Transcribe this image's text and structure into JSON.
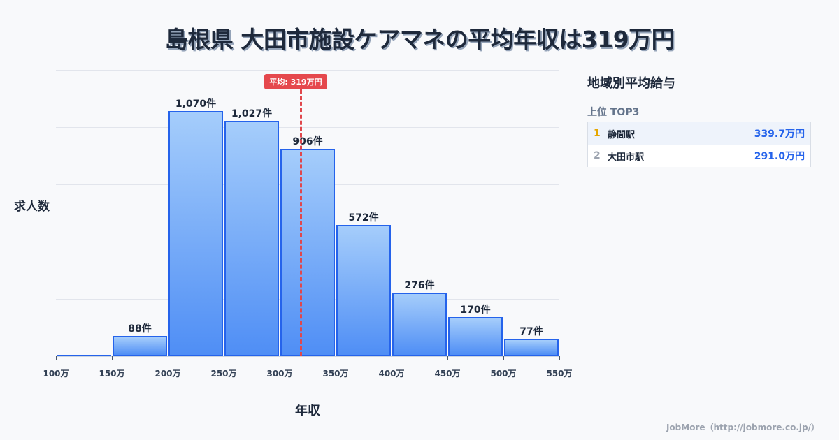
{
  "title": "島根県 大田市施設ケアマネの平均年収は319万円",
  "axis": {
    "ylabel": "求人数",
    "xlabel": "年収"
  },
  "average": {
    "label": "平均: 319万円",
    "value": 319
  },
  "sidebar": {
    "title": "地域別平均給与",
    "subtitle": "上位 TOP3",
    "ranks": [
      {
        "rank": "1",
        "name": "静間駅",
        "value": "339.7万円",
        "rank_color": "#e6a700"
      },
      {
        "rank": "2",
        "name": "大田市駅",
        "value": "291.0万円",
        "rank_color": "#9ca3af"
      }
    ]
  },
  "footer": "JobMore（http://jobmore.co.jp/）",
  "chart_data": {
    "type": "bar",
    "title": "島根県 大田市施設ケアマネの平均年収は319万円",
    "xlabel": "年収",
    "ylabel": "求人数",
    "categories": [
      "100-150万",
      "150-200万",
      "200-250万",
      "250-300万",
      "300-350万",
      "350-400万",
      "400-450万",
      "450-500万",
      "500-550万"
    ],
    "values": [
      0,
      88,
      1070,
      1027,
      906,
      572,
      276,
      170,
      77
    ],
    "value_labels": [
      "",
      "88件",
      "1,070件",
      "1,027件",
      "906件",
      "572件",
      "276件",
      "170件",
      "77件"
    ],
    "x_ticks": [
      "100万",
      "150万",
      "200万",
      "250万",
      "300万",
      "350万",
      "400万",
      "450万",
      "500万",
      "550万"
    ],
    "ylim": [
      0,
      1250
    ],
    "grid": true,
    "average_line": 319,
    "colors": {
      "bar_fill_top": "#a5cdfb",
      "bar_fill_bottom": "#4f8ef5",
      "bar_border": "#2563eb",
      "average": "#e5484d"
    }
  }
}
